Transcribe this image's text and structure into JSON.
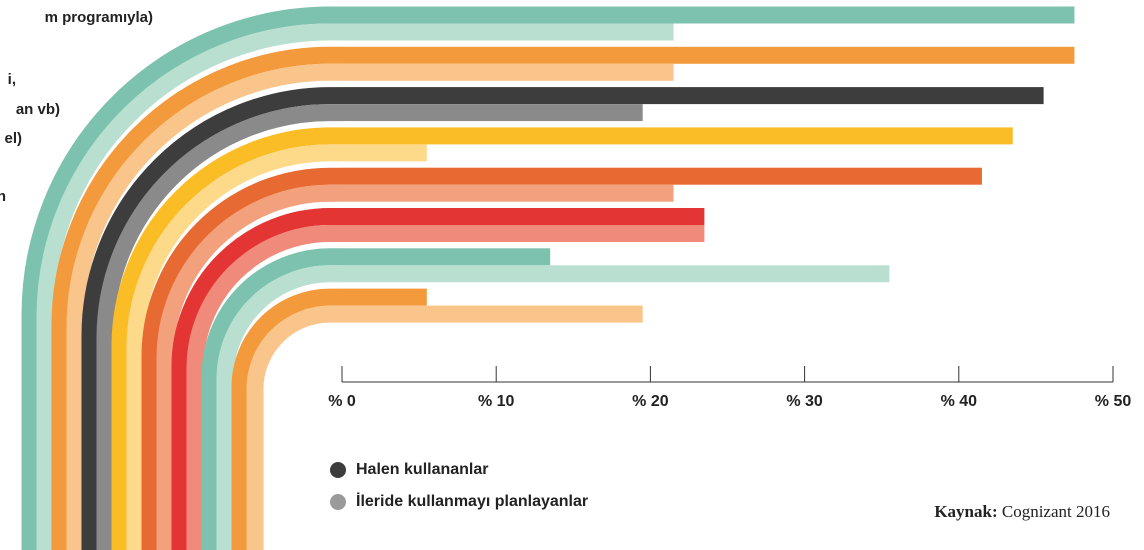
{
  "chart_data": {
    "type": "bar",
    "orientation": "horizontal",
    "annotations": [
      "m programıyla)",
      "i,",
      "an vb)",
      "el)",
      "n"
    ],
    "categories": [
      null,
      null,
      null,
      null,
      null,
      null,
      null,
      null
    ],
    "series": [
      {
        "name": "Halen kullananlar",
        "color": "#3d3d3d",
        "colors": [
          "#7dc2ae",
          "#f39a3d",
          "#3d3d3d",
          "#fbbd26",
          "#e86a33",
          "#e43535",
          "#7dc2ae",
          "#f39a3d"
        ],
        "values": [
          47.5,
          47.5,
          45.5,
          43.5,
          41.5,
          23.5,
          13.5,
          5.5
        ]
      },
      {
        "name": "İleride kullanmayı planlayanlar",
        "color": "#9a9a9a",
        "colors": [
          "#b8dfd0",
          "#f9c58b",
          "#8a8a8a",
          "#fdd98a",
          "#f3a07d",
          "#f08a7a",
          "#b8dfd0",
          "#f9c58b"
        ],
        "values": [
          21.5,
          21.5,
          19.5,
          5.5,
          21.5,
          23.5,
          35.5,
          19.5
        ]
      }
    ],
    "xlim": [
      0,
      50
    ],
    "xticks": [
      {
        "value": 0,
        "label": "% 0"
      },
      {
        "value": 10,
        "label": "% 10"
      },
      {
        "value": 20,
        "label": "% 20"
      },
      {
        "value": 30,
        "label": "% 30"
      },
      {
        "value": 40,
        "label": "% 40"
      },
      {
        "value": 50,
        "label": "% 50"
      }
    ],
    "source_label": "Kaynak:",
    "source": "Cognizant 2016"
  }
}
